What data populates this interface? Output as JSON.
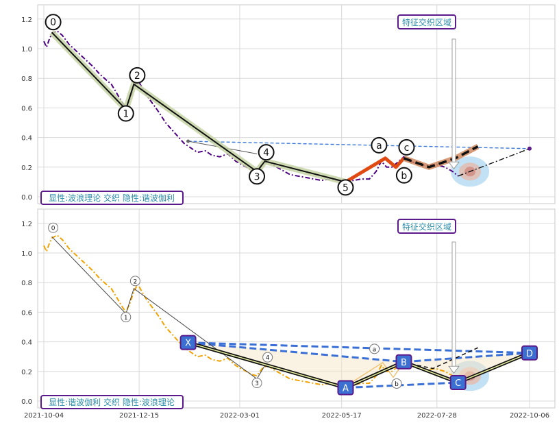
{
  "chart_data": [
    {
      "type": "line",
      "panel": "top",
      "ylim": [
        -0.05,
        1.29
      ],
      "y_ticks": [
        "0.0",
        "0.2",
        "0.4",
        "0.6",
        "0.8",
        "1.0",
        "1.2"
      ],
      "grid": true,
      "legend_text": "显性:波浪理论 交织 隐性:谐波伽利",
      "annotation_box": "特征交织区域",
      "price_series": {
        "name": "",
        "style": "dash-dot",
        "color": "#4b0082",
        "points": [
          [
            "2021-10-04",
            1.05
          ],
          [
            "2021-10-06",
            1.01
          ],
          [
            "2021-10-08",
            1.06
          ],
          [
            "2021-10-10",
            1.1
          ],
          [
            "2021-10-14",
            1.12
          ],
          [
            "2021-10-18",
            1.09
          ],
          [
            "2021-10-23",
            1.03
          ],
          [
            "2021-10-29",
            0.98
          ],
          [
            "2021-11-04",
            0.93
          ],
          [
            "2021-11-10",
            0.88
          ],
          [
            "2021-11-15",
            0.83
          ],
          [
            "2021-11-20",
            0.79
          ],
          [
            "2021-11-24",
            0.76
          ],
          [
            "2021-11-28",
            0.7
          ],
          [
            "2021-12-02",
            0.64
          ],
          [
            "2021-12-05",
            0.6
          ],
          [
            "2021-12-08",
            0.66
          ],
          [
            "2021-12-11",
            0.74
          ],
          [
            "2021-12-14",
            0.79
          ],
          [
            "2021-12-17",
            0.74
          ],
          [
            "2021-12-21",
            0.68
          ],
          [
            "2021-12-26",
            0.62
          ],
          [
            "2021-12-30",
            0.57
          ],
          [
            "2022-01-04",
            0.5
          ],
          [
            "2022-01-09",
            0.45
          ],
          [
            "2022-01-14",
            0.4
          ],
          [
            "2022-01-18",
            0.36
          ],
          [
            "2022-01-23",
            0.33
          ],
          [
            "2022-01-28",
            0.3
          ],
          [
            "2022-02-03",
            0.31
          ],
          [
            "2022-02-08",
            0.28
          ],
          [
            "2022-02-14",
            0.27
          ],
          [
            "2022-02-20",
            0.29
          ],
          [
            "2022-02-26",
            0.24
          ],
          [
            "2022-03-04",
            0.21
          ],
          [
            "2022-03-10",
            0.18
          ],
          [
            "2022-03-14",
            0.17
          ],
          [
            "2022-03-18",
            0.22
          ],
          [
            "2022-03-22",
            0.24
          ],
          [
            "2022-03-27",
            0.21
          ],
          [
            "2022-04-02",
            0.18
          ],
          [
            "2022-04-08",
            0.15
          ],
          [
            "2022-04-14",
            0.14
          ],
          [
            "2022-04-20",
            0.13
          ],
          [
            "2022-04-26",
            0.12
          ],
          [
            "2022-05-02",
            0.11
          ],
          [
            "2022-05-08",
            0.12
          ],
          [
            "2022-05-14",
            0.11
          ],
          [
            "2022-05-20",
            0.1
          ],
          [
            "2022-05-26",
            0.11
          ],
          [
            "2022-06-01",
            0.12
          ],
          [
            "2022-06-07",
            0.12
          ],
          [
            "2022-06-12",
            0.17
          ],
          [
            "2022-06-16",
            0.24
          ],
          [
            "2022-06-20",
            0.2
          ],
          [
            "2022-06-24",
            0.2
          ],
          [
            "2022-06-28",
            0.23
          ],
          [
            "2022-07-03",
            0.27
          ],
          [
            "2022-07-08",
            0.24
          ],
          [
            "2022-07-14",
            0.22
          ],
          [
            "2022-07-20",
            0.21
          ],
          [
            "2022-07-27",
            0.22
          ],
          [
            "2022-08-03",
            0.2
          ],
          [
            "2022-08-09",
            0.17
          ],
          [
            "2022-08-13",
            0.14
          ]
        ]
      },
      "elliott_wave": {
        "labels": [
          "0",
          "1",
          "2",
          "3",
          "4",
          "5"
        ],
        "points": [
          [
            "2021-10-10",
            1.11
          ],
          [
            "2021-12-05",
            0.59
          ],
          [
            "2021-12-11",
            0.76
          ],
          [
            "2022-03-14",
            0.17
          ],
          [
            "2022-03-20",
            0.24
          ],
          [
            "2022-05-20",
            0.1
          ]
        ]
      },
      "corrective_wave": {
        "labels": [
          "a",
          "b",
          "c"
        ],
        "points": [
          [
            "2022-05-20",
            0.1
          ],
          [
            "2022-06-19",
            0.26
          ],
          [
            "2022-06-27",
            0.2
          ],
          [
            "2022-07-03",
            0.26
          ]
        ]
      },
      "forecast_path": {
        "points": [
          [
            "2022-07-03",
            0.26
          ],
          [
            "2022-07-22",
            0.2
          ],
          [
            "2022-08-11",
            0.26
          ],
          [
            "2022-08-28",
            0.34
          ]
        ]
      },
      "reference_lines": [
        {
          "points": [
            [
              "2022-01-21",
              0.375
            ],
            [
              "2022-10-06",
              0.325
            ]
          ]
        },
        {
          "points": [
            [
              "2022-01-21",
              0.375
            ],
            [
              "2022-03-14",
              0.29
            ]
          ]
        },
        {
          "points": [
            [
              "2022-08-13",
              0.14
            ],
            [
              "2022-10-06",
              0.325
            ]
          ]
        }
      ],
      "target_point": [
        "2022-08-22",
        0.17
      ]
    },
    {
      "type": "line",
      "panel": "bottom",
      "ylim": [
        -0.05,
        1.29
      ],
      "y_ticks": [
        "0.0",
        "0.2",
        "0.4",
        "0.6",
        "0.8",
        "1.0",
        "1.2"
      ],
      "x_ticks": [
        "2021-10-04",
        "2021-12-15",
        "2022-03-01",
        "2022-05-17",
        "2022-07-28",
        "2022-10-06"
      ],
      "grid": true,
      "legend_text": "显性:谐波伽利 交织 隐性:波浪理论",
      "annotation_box": "特征交织区域",
      "price_series": {
        "name": "",
        "style": "dash-dot",
        "color": "#f0a202",
        "points": [
          [
            "2021-10-04",
            1.05
          ],
          [
            "2021-10-06",
            1.01
          ],
          [
            "2021-10-08",
            1.06
          ],
          [
            "2021-10-10",
            1.1
          ],
          [
            "2021-10-14",
            1.12
          ],
          [
            "2021-10-18",
            1.09
          ],
          [
            "2021-10-23",
            1.03
          ],
          [
            "2021-10-29",
            0.98
          ],
          [
            "2021-11-04",
            0.93
          ],
          [
            "2021-11-10",
            0.88
          ],
          [
            "2021-11-15",
            0.83
          ],
          [
            "2021-11-20",
            0.79
          ],
          [
            "2021-11-24",
            0.76
          ],
          [
            "2021-11-28",
            0.7
          ],
          [
            "2021-12-02",
            0.64
          ],
          [
            "2021-12-05",
            0.6
          ],
          [
            "2021-12-08",
            0.66
          ],
          [
            "2021-12-11",
            0.74
          ],
          [
            "2021-12-14",
            0.79
          ],
          [
            "2021-12-17",
            0.74
          ],
          [
            "2021-12-21",
            0.68
          ],
          [
            "2021-12-26",
            0.62
          ],
          [
            "2021-12-30",
            0.57
          ],
          [
            "2022-01-04",
            0.5
          ],
          [
            "2022-01-09",
            0.45
          ],
          [
            "2022-01-14",
            0.4
          ],
          [
            "2022-01-18",
            0.36
          ],
          [
            "2022-01-23",
            0.33
          ],
          [
            "2022-01-28",
            0.3
          ],
          [
            "2022-02-03",
            0.31
          ],
          [
            "2022-02-08",
            0.28
          ],
          [
            "2022-02-14",
            0.27
          ],
          [
            "2022-02-20",
            0.29
          ],
          [
            "2022-02-26",
            0.24
          ],
          [
            "2022-03-04",
            0.21
          ],
          [
            "2022-03-10",
            0.18
          ],
          [
            "2022-03-14",
            0.17
          ],
          [
            "2022-03-18",
            0.22
          ],
          [
            "2022-03-22",
            0.24
          ],
          [
            "2022-03-27",
            0.21
          ],
          [
            "2022-04-02",
            0.18
          ],
          [
            "2022-04-08",
            0.15
          ],
          [
            "2022-04-14",
            0.14
          ],
          [
            "2022-04-20",
            0.13
          ],
          [
            "2022-04-26",
            0.12
          ],
          [
            "2022-05-02",
            0.11
          ],
          [
            "2022-05-08",
            0.12
          ],
          [
            "2022-05-14",
            0.11
          ],
          [
            "2022-05-20",
            0.1
          ],
          [
            "2022-05-26",
            0.11
          ],
          [
            "2022-06-01",
            0.12
          ],
          [
            "2022-06-07",
            0.12
          ],
          [
            "2022-06-12",
            0.17
          ],
          [
            "2022-06-16",
            0.24
          ],
          [
            "2022-06-20",
            0.2
          ],
          [
            "2022-06-24",
            0.2
          ],
          [
            "2022-06-28",
            0.23
          ],
          [
            "2022-07-03",
            0.27
          ],
          [
            "2022-07-08",
            0.24
          ],
          [
            "2022-07-14",
            0.22
          ],
          [
            "2022-07-20",
            0.21
          ],
          [
            "2022-07-27",
            0.22
          ],
          [
            "2022-08-03",
            0.2
          ],
          [
            "2022-08-09",
            0.17
          ],
          [
            "2022-08-13",
            0.14
          ]
        ]
      },
      "elliott_wave": {
        "labels": [
          "0",
          "1",
          "2",
          "3",
          "4"
        ],
        "points": [
          [
            "2021-10-10",
            1.11
          ],
          [
            "2021-12-05",
            0.59
          ],
          [
            "2021-12-11",
            0.76
          ],
          [
            "2022-03-14",
            0.15
          ],
          [
            "2022-03-20",
            0.24
          ],
          [
            "2022-05-20",
            0.1
          ]
        ]
      },
      "corrective_wave": {
        "labels": [
          "a",
          "b"
        ],
        "points": [
          [
            "2022-05-20",
            0.1
          ],
          [
            "2022-06-17",
            0.26
          ],
          [
            "2022-06-25",
            0.16
          ],
          [
            "2022-07-03",
            0.26
          ]
        ]
      },
      "harmonic_pattern": {
        "labels": [
          "X",
          "A",
          "B",
          "C",
          "D"
        ],
        "points": [
          [
            "2022-01-21",
            0.395
          ],
          [
            "2022-05-20",
            0.09
          ],
          [
            "2022-07-03",
            0.265
          ],
          [
            "2022-08-13",
            0.125
          ],
          [
            "2022-10-06",
            0.325
          ]
        ]
      },
      "harmonic_dashed_links": [
        [
          "X",
          "B"
        ],
        [
          "X",
          "D"
        ],
        [
          "A",
          "C"
        ],
        [
          "B",
          "D"
        ]
      ],
      "forecast_path": {
        "points": [
          [
            "2022-07-03",
            0.26
          ],
          [
            "2022-07-25",
            0.22
          ],
          [
            "2022-08-28",
            0.36
          ]
        ]
      },
      "target_point": [
        "2022-08-22",
        0.17
      ]
    }
  ]
}
